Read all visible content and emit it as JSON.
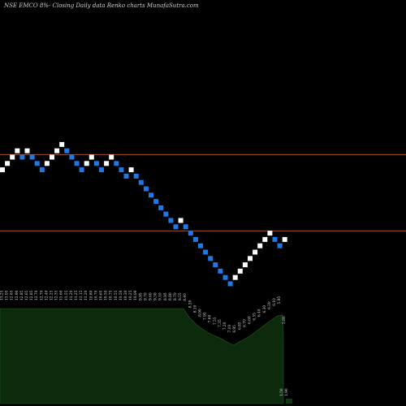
{
  "chart_data": {
    "type": "renko",
    "title": "NSE EMCO 8%-  Closing Daily data  Renko  charts MunafaSutra.com",
    "colors": {
      "background": "#000000",
      "up_brick": "#ffffff",
      "down_brick": "#1e78e6",
      "reference_line": "#a0522d",
      "volume_fill": "#0d2a0d"
    },
    "bricks": [
      {
        "level": 13,
        "dir": "up"
      },
      {
        "level": 14,
        "dir": "up"
      },
      {
        "level": 15,
        "dir": "up"
      },
      {
        "level": 16,
        "dir": "up"
      },
      {
        "level": 15,
        "dir": "down"
      },
      {
        "level": 16,
        "dir": "up"
      },
      {
        "level": 15,
        "dir": "down"
      },
      {
        "level": 14,
        "dir": "down"
      },
      {
        "level": 13,
        "dir": "down"
      },
      {
        "level": 14,
        "dir": "up"
      },
      {
        "level": 15,
        "dir": "up"
      },
      {
        "level": 16,
        "dir": "up"
      },
      {
        "level": 17,
        "dir": "up"
      },
      {
        "level": 16,
        "dir": "down"
      },
      {
        "level": 15,
        "dir": "down"
      },
      {
        "level": 14,
        "dir": "down"
      },
      {
        "level": 13,
        "dir": "down"
      },
      {
        "level": 14,
        "dir": "up"
      },
      {
        "level": 15,
        "dir": "up"
      },
      {
        "level": 14,
        "dir": "down"
      },
      {
        "level": 13,
        "dir": "down"
      },
      {
        "level": 14,
        "dir": "up"
      },
      {
        "level": 15,
        "dir": "up"
      },
      {
        "level": 14,
        "dir": "down"
      },
      {
        "level": 13,
        "dir": "down"
      },
      {
        "level": 12,
        "dir": "down"
      },
      {
        "level": 13,
        "dir": "up"
      },
      {
        "level": 12,
        "dir": "down"
      },
      {
        "level": 11,
        "dir": "down"
      },
      {
        "level": 10,
        "dir": "down"
      },
      {
        "level": 9,
        "dir": "down"
      },
      {
        "level": 8,
        "dir": "down"
      },
      {
        "level": 7,
        "dir": "down"
      },
      {
        "level": 6,
        "dir": "down"
      },
      {
        "level": 5,
        "dir": "down"
      },
      {
        "level": 4,
        "dir": "down"
      },
      {
        "level": 5,
        "dir": "up"
      },
      {
        "level": 4,
        "dir": "down"
      },
      {
        "level": 3,
        "dir": "down"
      },
      {
        "level": 2,
        "dir": "down"
      },
      {
        "level": 1,
        "dir": "down"
      },
      {
        "level": 0,
        "dir": "down"
      },
      {
        "level": -1,
        "dir": "down"
      },
      {
        "level": -2,
        "dir": "down"
      },
      {
        "level": -3,
        "dir": "down"
      },
      {
        "level": -4,
        "dir": "down"
      },
      {
        "level": -5,
        "dir": "down"
      },
      {
        "level": -4,
        "dir": "up"
      },
      {
        "level": -3,
        "dir": "up"
      },
      {
        "level": -2,
        "dir": "up"
      },
      {
        "level": -1,
        "dir": "up"
      },
      {
        "level": 0,
        "dir": "up"
      },
      {
        "level": 1,
        "dir": "up"
      },
      {
        "level": 2,
        "dir": "up"
      },
      {
        "level": 3,
        "dir": "up"
      },
      {
        "level": 2,
        "dir": "down"
      },
      {
        "level": 1,
        "dir": "down"
      },
      {
        "level": 2,
        "dir": "up"
      }
    ],
    "reference_levels": [
      15.4,
      3.35
    ],
    "volume_labels": [
      "13.25",
      "13.05",
      "12.65",
      "12.90",
      "12.85",
      "12.65",
      "12.85",
      "12.70",
      "12.70",
      "12.40",
      "12.25",
      "12.35",
      "11.60",
      "11.55",
      "11.20",
      "11.25",
      "11.15",
      "11.20",
      "10.80",
      "10.70",
      "10.65",
      "10.50",
      "10.75",
      "10.55",
      "10.50",
      "10.30",
      "10.25",
      "10.00",
      "9.95",
      "9.70",
      "9.60",
      "9.30",
      "9.10",
      "8.95",
      "8.80",
      "8.70",
      "8.55",
      "8.40",
      "8.30",
      "8.10",
      "8.00",
      "7.95",
      "7.60",
      "7.55",
      "7.35",
      "7.20",
      "7.10",
      "6.95",
      "6.85",
      "6.70",
      "6.60",
      "6.55",
      "6.40",
      "6.30",
      "6.20",
      "6.10",
      "5.95",
      "5.80"
    ],
    "volume_profile": [
      [
        0,
        0.45
      ],
      [
        226,
        0.45
      ],
      [
        234,
        0.65
      ],
      [
        242,
        0.78
      ],
      [
        250,
        0.88
      ],
      [
        258,
        0.96
      ],
      [
        266,
        1.02
      ],
      [
        274,
        1.08
      ],
      [
        282,
        1.16
      ],
      [
        288,
        1.2
      ],
      [
        296,
        1.12
      ],
      [
        304,
        1.05
      ],
      [
        312,
        0.96
      ],
      [
        320,
        0.86
      ],
      [
        328,
        0.76
      ],
      [
        336,
        0.66
      ],
      [
        342,
        0.6
      ],
      [
        348,
        0.58
      ],
      [
        349,
        1.0
      ]
    ],
    "tail_labels": [
      "1.50",
      "1.90"
    ]
  }
}
